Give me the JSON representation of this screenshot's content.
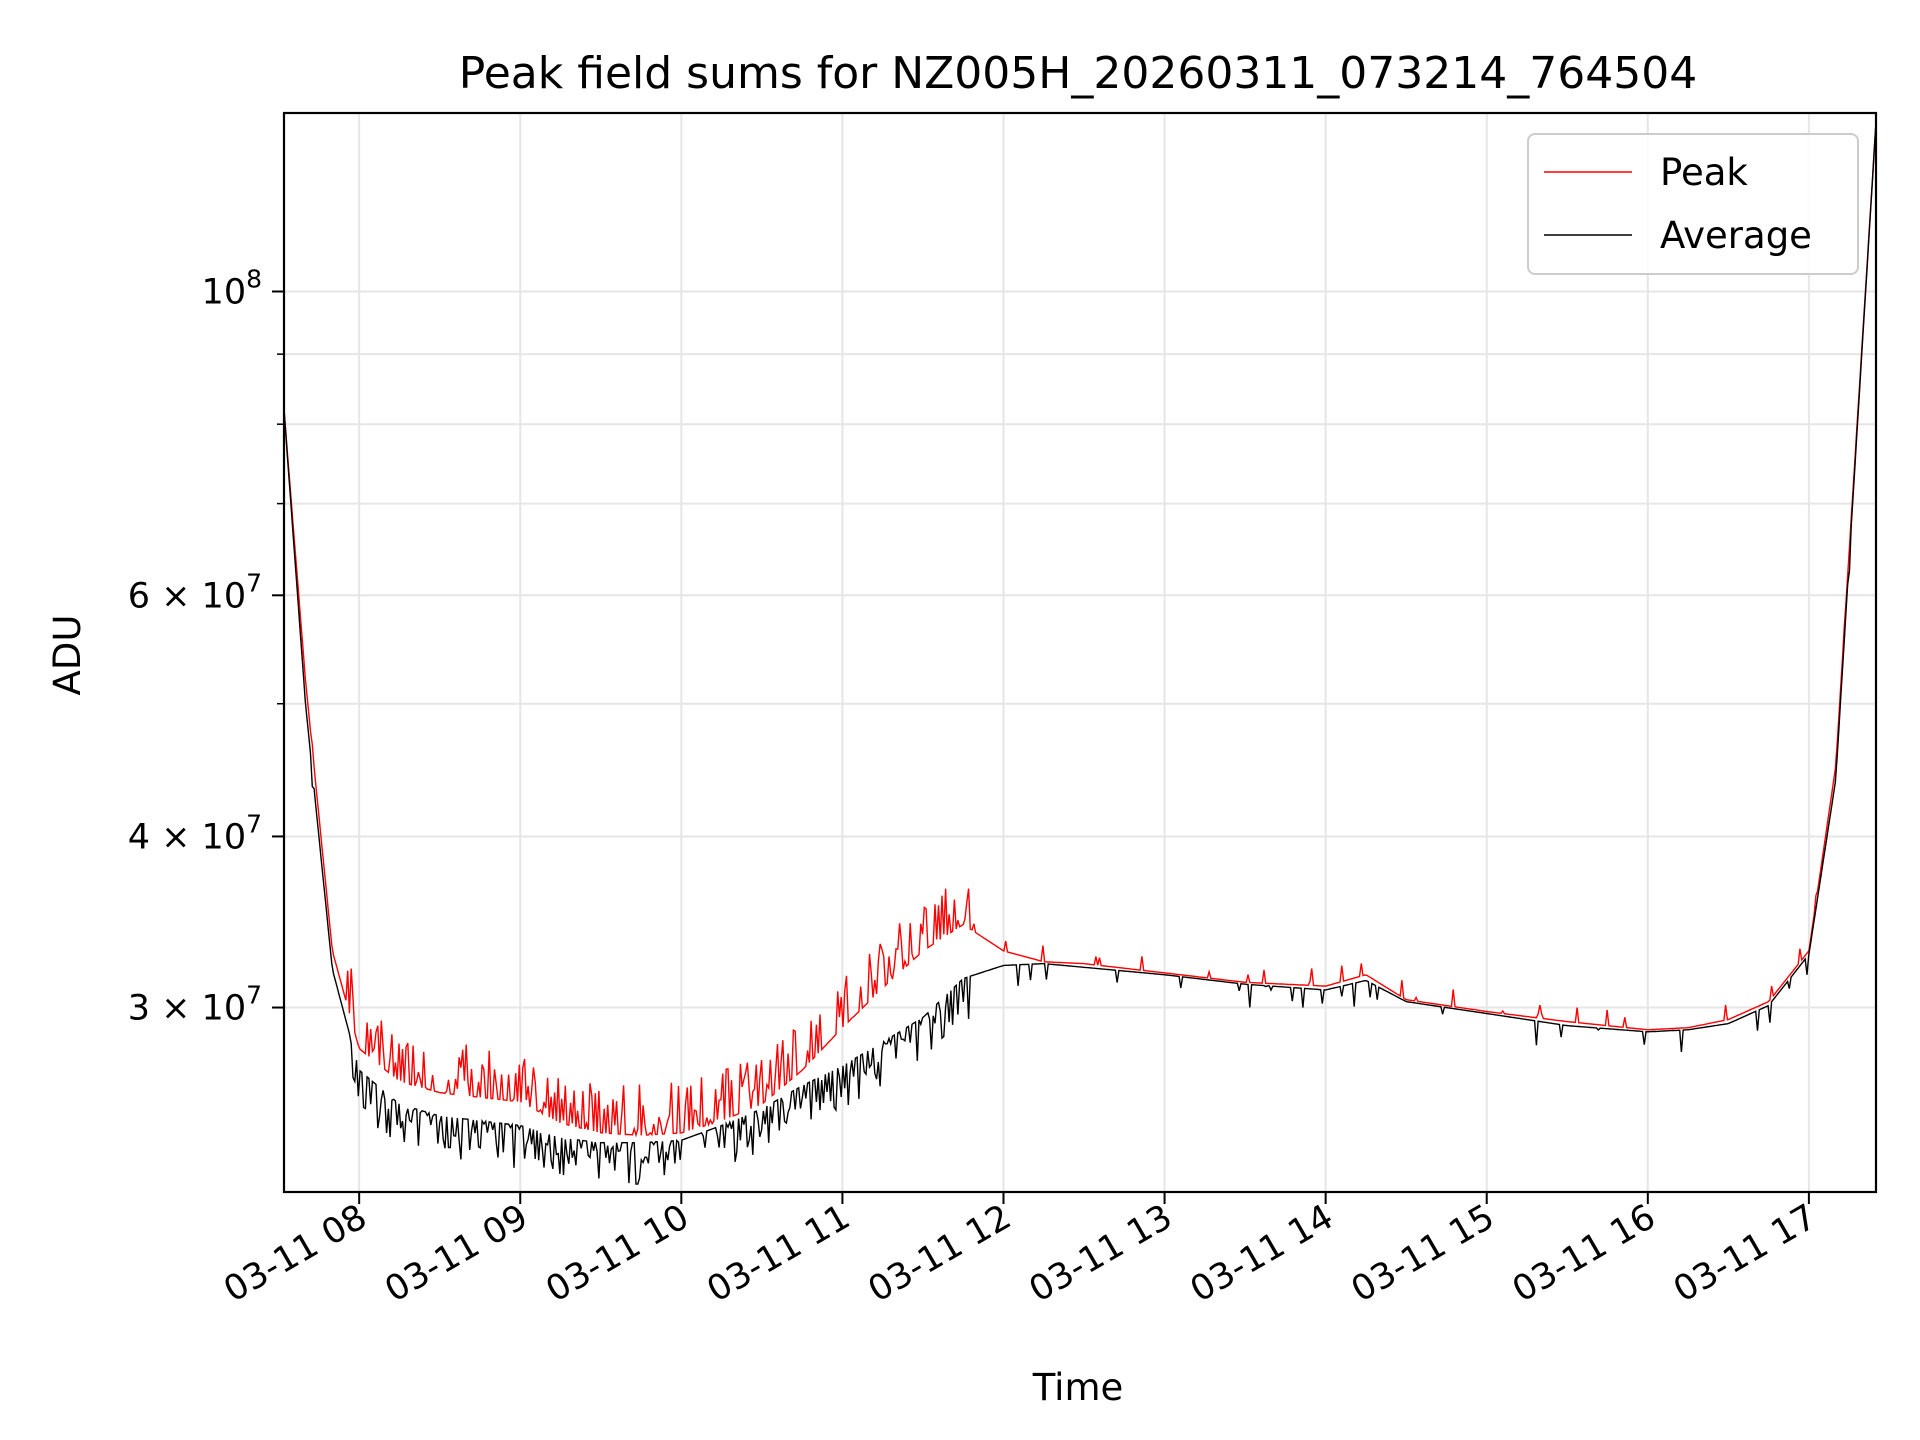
{
  "chart_data": {
    "type": "line",
    "title": "Peak field sums for NZ005H_20260311_073214_764504",
    "xlabel": "Time",
    "ylabel": "ADU",
    "yscale": "log",
    "grid": true,
    "legend_position": "upper right",
    "xlim": [
      "03-11 07:32",
      "03-11 17:25"
    ],
    "ylim": [
      22000000,
      135000000
    ],
    "x_ticks": [
      "03-11 08",
      "03-11 09",
      "03-11 10",
      "03-11 11",
      "03-11 12",
      "03-11 13",
      "03-11 14",
      "03-11 15",
      "03-11 16",
      "03-11 17"
    ],
    "y_ticks": [
      {
        "value": 30000000,
        "base": "3",
        "mantissa_text": "3 × 10",
        "exponent": "7"
      },
      {
        "value": 40000000,
        "base": "4",
        "mantissa_text": "4 × 10",
        "exponent": "7"
      },
      {
        "value": 60000000,
        "base": "6",
        "mantissa_text": "6 × 10",
        "exponent": "7"
      },
      {
        "value": 100000000,
        "mantissa_text": "10",
        "exponent": "8"
      }
    ],
    "series": [
      {
        "name": "Peak",
        "color": "#ff0000",
        "x": [
          "03-11 07:32",
          "03-11 07:40",
          "03-11 07:50",
          "03-11 08:00",
          "03-11 08:15",
          "03-11 08:30",
          "03-11 08:45",
          "03-11 09:00",
          "03-11 09:15",
          "03-11 09:30",
          "03-11 09:45",
          "03-11 10:00",
          "03-11 10:15",
          "03-11 10:30",
          "03-11 10:45",
          "03-11 11:00",
          "03-11 11:15",
          "03-11 11:30",
          "03-11 11:45",
          "03-11 12:00",
          "03-11 12:15",
          "03-11 12:30",
          "03-11 13:00",
          "03-11 13:30",
          "03-11 14:00",
          "03-11 14:15",
          "03-11 14:30",
          "03-11 15:00",
          "03-11 15:30",
          "03-11 16:00",
          "03-11 16:15",
          "03-11 16:30",
          "03-11 16:45",
          "03-11 17:00",
          "03-11 17:10",
          "03-11 17:25"
        ],
        "values": [
          82000000,
          52000000,
          33000000,
          28000000,
          26500000,
          26000000,
          25800000,
          25600000,
          24700000,
          24300000,
          24200000,
          24300000,
          24800000,
          25500000,
          27000000,
          29000000,
          31000000,
          33000000,
          34500000,
          33000000,
          32400000,
          32300000,
          31800000,
          31300000,
          31100000,
          31700000,
          30400000,
          29800000,
          29300000,
          28900000,
          29000000,
          29400000,
          30300000,
          33000000,
          45000000,
          133000000
        ]
      },
      {
        "name": "Average",
        "color": "#000000",
        "x": [
          "03-11 07:32",
          "03-11 07:40",
          "03-11 07:50",
          "03-11 08:00",
          "03-11 08:15",
          "03-11 08:30",
          "03-11 08:45",
          "03-11 09:00",
          "03-11 09:15",
          "03-11 09:30",
          "03-11 09:45",
          "03-11 10:00",
          "03-11 10:15",
          "03-11 10:30",
          "03-11 10:45",
          "03-11 11:00",
          "03-11 11:15",
          "03-11 11:30",
          "03-11 11:45",
          "03-11 12:00",
          "03-11 12:15",
          "03-11 12:30",
          "03-11 13:00",
          "03-11 13:30",
          "03-11 14:00",
          "03-11 14:15",
          "03-11 14:30",
          "03-11 15:00",
          "03-11 15:30",
          "03-11 16:00",
          "03-11 16:15",
          "03-11 16:30",
          "03-11 16:45",
          "03-11 17:00",
          "03-11 17:10",
          "03-11 17:25"
        ],
        "values": [
          82000000,
          50000000,
          32000000,
          27000000,
          25500000,
          25000000,
          24800000,
          24600000,
          24100000,
          23900000,
          23900000,
          24000000,
          24600000,
          25300000,
          26300000,
          27200000,
          28300000,
          29500000,
          31500000,
          32200000,
          32300000,
          32100000,
          31700000,
          31200000,
          30900000,
          31400000,
          30300000,
          29700000,
          29100000,
          28800000,
          28900000,
          29200000,
          30100000,
          32800000,
          44000000,
          133000000
        ]
      }
    ]
  }
}
